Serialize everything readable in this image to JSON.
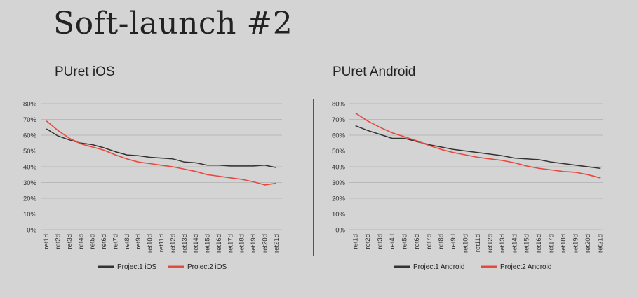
{
  "slide": {
    "title": "Soft-launch #2"
  },
  "colors": {
    "project1": "#333333",
    "project2": "#e8493f",
    "grid": "#b9b9b9",
    "background": "#d4d4d4"
  },
  "chart_data": [
    {
      "type": "line",
      "title": "PUret iOS",
      "xlabel": "",
      "ylabel": "",
      "categories": [
        "ret1d",
        "ret2d",
        "ret3d",
        "ret4d",
        "ret5d",
        "ret6d",
        "ret7d",
        "ret8d",
        "ret9d",
        "ret10d",
        "ret11d",
        "ret12d",
        "ret13d",
        "ret14d",
        "ret15d",
        "ret16d",
        "ret17d",
        "ret18d",
        "ret19d",
        "ret20d",
        "ret21d"
      ],
      "ylim": [
        0,
        80
      ],
      "yticks": [
        "0%",
        "10%",
        "20%",
        "30%",
        "40%",
        "50%",
        "60%",
        "70%",
        "80%"
      ],
      "grid": true,
      "legend_position": "bottom",
      "series": [
        {
          "name": "Project1 iOS",
          "color": "#333333",
          "values": [
            64,
            59.5,
            57,
            55,
            54,
            52,
            49.5,
            47.5,
            47,
            46,
            45.5,
            45,
            43,
            42.5,
            41,
            41,
            40.5,
            40.5,
            40.5,
            41,
            39.5
          ]
        },
        {
          "name": "Project2 iOS",
          "color": "#e8493f",
          "values": [
            69,
            63,
            58,
            54.5,
            52.5,
            50.5,
            47.5,
            45,
            43,
            42,
            41,
            40,
            38.5,
            37,
            35,
            34,
            33,
            32,
            30.5,
            28.5,
            29.5
          ]
        }
      ]
    },
    {
      "type": "line",
      "title": "PUret Android",
      "xlabel": "",
      "ylabel": "",
      "categories": [
        "ret1d",
        "ret2d",
        "ret3d",
        "ret4d",
        "ret5d",
        "ret6d",
        "ret7d",
        "ret8d",
        "ret9d",
        "ret10d",
        "ret11d",
        "ret12d",
        "ret13d",
        "ret14d",
        "ret15d",
        "ret16d",
        "ret17d",
        "ret18d",
        "ret19d",
        "ret20d",
        "ret21d"
      ],
      "ylim": [
        0,
        80
      ],
      "yticks": [
        "0%",
        "10%",
        "20%",
        "30%",
        "40%",
        "50%",
        "60%",
        "70%",
        "80%"
      ],
      "grid": true,
      "legend_position": "bottom",
      "series": [
        {
          "name": "Project1 Android",
          "color": "#333333",
          "values": [
            66,
            63,
            60.5,
            58,
            58,
            56,
            54,
            52.5,
            51,
            50,
            49,
            48,
            47,
            45.5,
            45,
            44.5,
            43,
            42,
            41,
            40,
            39
          ]
        },
        {
          "name": "Project2 Android",
          "color": "#e8493f",
          "values": [
            74,
            69,
            65,
            61.5,
            59,
            56.5,
            53.5,
            51,
            49,
            47.5,
            46,
            45,
            44,
            42.5,
            40.5,
            39,
            38,
            37,
            36.5,
            35,
            33
          ]
        }
      ]
    }
  ]
}
